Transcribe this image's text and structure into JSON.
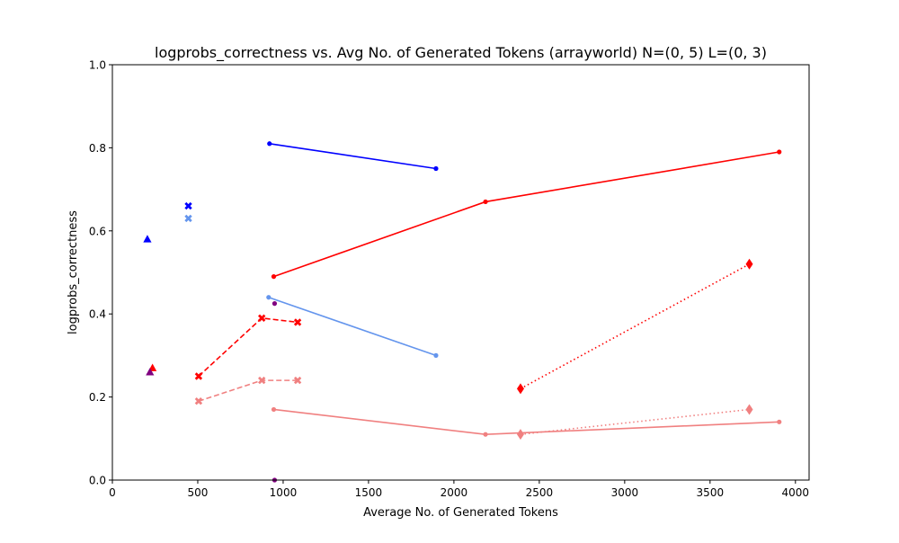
{
  "chart_data": {
    "type": "scatter",
    "title": "logprobs_correctness vs. Avg No. of Generated Tokens (arrayworld) N=(0, 5) L=(0, 3)",
    "xlabel": "Average No. of Generated Tokens",
    "ylabel": "logprobs_correctness",
    "xlim": [
      0,
      4080
    ],
    "ylim": [
      0,
      1.0
    ],
    "xticks": [
      0,
      500,
      1000,
      1500,
      2000,
      2500,
      3000,
      3500,
      4000
    ],
    "xtick_labels": [
      "0",
      "500",
      "1000",
      "1500",
      "2000",
      "2500",
      "3000",
      "3500",
      "4000"
    ],
    "yticks": [
      0.0,
      0.2,
      0.4,
      0.6,
      0.8,
      1.0
    ],
    "ytick_labels": [
      "0.0",
      "0.2",
      "0.4",
      "0.6",
      "0.8",
      "1.0"
    ],
    "grid": false,
    "legend": "none",
    "series": [
      {
        "color": "#0000ff",
        "line": "solid",
        "marker": "point",
        "x": [
          920,
          1895
        ],
        "y": [
          0.81,
          0.75
        ]
      },
      {
        "color": "#ff0000",
        "line": "solid",
        "marker": "point",
        "x": [
          945,
          2185,
          3905
        ],
        "y": [
          0.49,
          0.67,
          0.79
        ]
      },
      {
        "color": "#6495ed",
        "line": "solid",
        "marker": "point",
        "x": [
          915,
          1895
        ],
        "y": [
          0.44,
          0.3
        ]
      },
      {
        "color": "#f08080",
        "line": "solid",
        "marker": "point",
        "x": [
          945,
          2185,
          3905
        ],
        "y": [
          0.17,
          0.11,
          0.14
        ]
      },
      {
        "color": "#ff0000",
        "line": "dashed",
        "marker": "x",
        "x": [
          505,
          875,
          1085
        ],
        "y": [
          0.25,
          0.39,
          0.38
        ]
      },
      {
        "color": "#f08080",
        "line": "dashed",
        "marker": "x",
        "x": [
          505,
          875,
          1085
        ],
        "y": [
          0.19,
          0.24,
          0.24
        ]
      },
      {
        "color": "#ff0000",
        "line": "dotted",
        "marker": "diamond",
        "x": [
          2390,
          3730
        ],
        "y": [
          0.22,
          0.52
        ]
      },
      {
        "color": "#f08080",
        "line": "dotted",
        "marker": "diamond",
        "x": [
          2390,
          3730
        ],
        "y": [
          0.11,
          0.17
        ]
      },
      {
        "color": "#0000ff",
        "line": "none",
        "marker": "x",
        "x": [
          445
        ],
        "y": [
          0.66
        ]
      },
      {
        "color": "#6495ed",
        "line": "none",
        "marker": "x",
        "x": [
          445
        ],
        "y": [
          0.63
        ]
      },
      {
        "color": "#0000ff",
        "line": "none",
        "marker": "triangle",
        "x": [
          205
        ],
        "y": [
          0.58
        ]
      },
      {
        "color": "#ff0000",
        "line": "none",
        "marker": "triangle",
        "x": [
          235
        ],
        "y": [
          0.27
        ]
      },
      {
        "color": "#800080",
        "line": "none",
        "marker": "triangle",
        "x": [
          220
        ],
        "y": [
          0.26
        ]
      },
      {
        "color": "#800080",
        "line": "none",
        "marker": "point",
        "x": [
          950,
          950
        ],
        "y": [
          0.425,
          0.0
        ]
      }
    ]
  }
}
